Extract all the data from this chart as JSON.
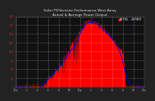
{
  "title": "Solar PV/Inverter Performance West Array",
  "subtitle": "Actual & Average Power Output",
  "bg_color": "#222222",
  "plot_bg_color": "#111111",
  "bar_color": "#ff0000",
  "avg_line_color": "#0000ee",
  "legend_actual": "ACTUAL",
  "legend_average": "AVERAGE",
  "legend_actual_color": "#ff2222",
  "legend_average_color": "#0044ff",
  "title_color": "#dddddd",
  "grid_color": "#ffffff",
  "x_tick_color": "#aaaaaa",
  "y_tick_color": "#cc2222",
  "ylim": [
    0,
    200
  ],
  "num_points": 288,
  "x_tick_labels": [
    "12a",
    "2",
    "4",
    "6",
    "8",
    "10",
    "12p",
    "2",
    "4",
    "6",
    "8",
    "10",
    "12a"
  ],
  "y_ticks": [
    0,
    25,
    50,
    75,
    100,
    125,
    150,
    175,
    200
  ]
}
